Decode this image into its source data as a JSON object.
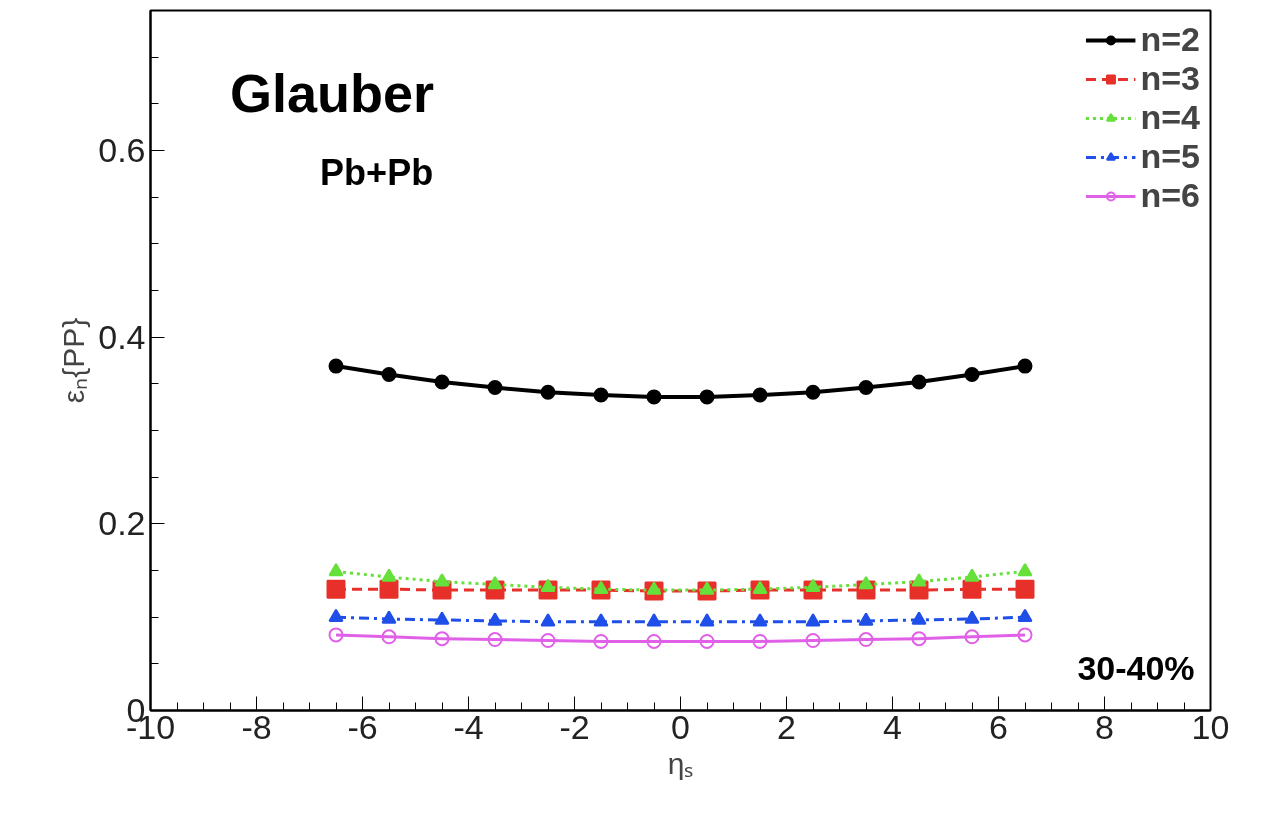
{
  "chart_data": {
    "type": "line",
    "xlabel": "ηₛ",
    "ylabel": "εₙ{PP}",
    "x": [
      -6.5,
      -5.5,
      -4.5,
      -3.5,
      -2.5,
      -1.5,
      -0.5,
      0.5,
      1.5,
      2.5,
      3.5,
      4.5,
      5.5,
      6.5
    ],
    "series": [
      {
        "name": "n=2",
        "color": "#000000",
        "marker": "circle",
        "line_style": "solid",
        "values": [
          0.369,
          0.36,
          0.352,
          0.346,
          0.341,
          0.338,
          0.336,
          0.336,
          0.338,
          0.341,
          0.346,
          0.352,
          0.36,
          0.369
        ]
      },
      {
        "name": "n=3",
        "color": "#e8302a",
        "marker": "square",
        "line_style": "dashed",
        "values": [
          0.13,
          0.13,
          0.129,
          0.129,
          0.129,
          0.129,
          0.128,
          0.128,
          0.129,
          0.129,
          0.129,
          0.129,
          0.13,
          0.13
        ]
      },
      {
        "name": "n=4",
        "color": "#66e03a",
        "marker": "triangle",
        "line_style": "dotted",
        "values": [
          0.149,
          0.143,
          0.138,
          0.135,
          0.132,
          0.13,
          0.129,
          0.129,
          0.13,
          0.132,
          0.135,
          0.138,
          0.143,
          0.149
        ]
      },
      {
        "name": "n=5",
        "color": "#1f4fe8",
        "marker": "triangle",
        "line_style": "dashdot",
        "values": [
          0.1,
          0.098,
          0.097,
          0.096,
          0.095,
          0.095,
          0.095,
          0.095,
          0.095,
          0.095,
          0.096,
          0.097,
          0.098,
          0.1
        ]
      },
      {
        "name": "n=6",
        "color": "#e060e8",
        "marker": "open_circle",
        "line_style": "solid",
        "values": [
          0.081,
          0.079,
          0.077,
          0.076,
          0.075,
          0.074,
          0.074,
          0.074,
          0.074,
          0.075,
          0.076,
          0.077,
          0.079,
          0.081
        ]
      }
    ],
    "annotations": [
      "Glauber",
      "Pb+Pb",
      "30-40%"
    ],
    "xlim": [
      -10,
      10
    ],
    "xticks": [
      -10,
      -8,
      -6,
      -4,
      -2,
      0,
      2,
      4,
      6,
      8,
      10
    ],
    "ylim": [
      0,
      0.75
    ],
    "yticks": [
      0,
      0.2,
      0.4,
      0.6
    ],
    "legend": "top right",
    "grid": false
  }
}
